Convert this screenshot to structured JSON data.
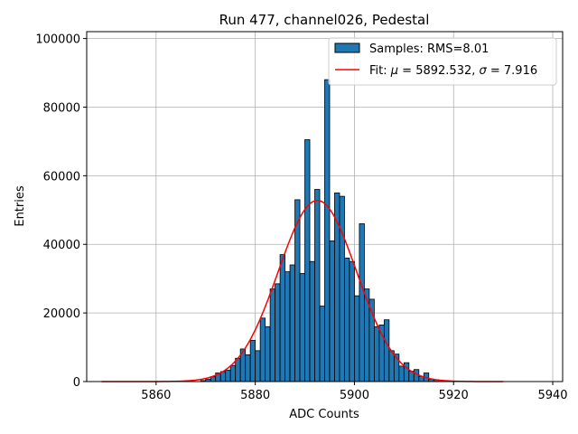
{
  "chart_data": {
    "type": "bar",
    "title": "Run 477, channel026, Pedestal",
    "xlabel": "ADC Counts",
    "ylabel": "Entries",
    "xlim": [
      5846,
      5942
    ],
    "ylim": [
      0,
      102000
    ],
    "xticks": [
      5860,
      5880,
      5900,
      5920,
      5940
    ],
    "yticks": [
      0,
      20000,
      40000,
      60000,
      80000,
      100000
    ],
    "grid": true,
    "legend_position": "top-right",
    "colors": {
      "bars": "#1f77b4",
      "bar_edge": "#000000",
      "fit": "#ff0000",
      "grid": "#b0b0b0"
    },
    "histogram": {
      "name": "Samples: RMS=8.01",
      "bin_width": 1,
      "bins": [
        [
          5869,
          300
        ],
        [
          5870,
          700
        ],
        [
          5871,
          1400
        ],
        [
          5872,
          2500
        ],
        [
          5873,
          2900
        ],
        [
          5874,
          3300
        ],
        [
          5875,
          4700
        ],
        [
          5876,
          6800
        ],
        [
          5877,
          9500
        ],
        [
          5878,
          7800
        ],
        [
          5879,
          12000
        ],
        [
          5880,
          9000
        ],
        [
          5881,
          18500
        ],
        [
          5882,
          16000
        ],
        [
          5883,
          27000
        ],
        [
          5884,
          28500
        ],
        [
          5885,
          37000
        ],
        [
          5886,
          32000
        ],
        [
          5887,
          34000
        ],
        [
          5888,
          53000
        ],
        [
          5889,
          31500
        ],
        [
          5890,
          70500
        ],
        [
          5891,
          35000
        ],
        [
          5892,
          56000
        ],
        [
          5893,
          22000
        ],
        [
          5894,
          88000
        ],
        [
          5895,
          41000
        ],
        [
          5896,
          55000
        ],
        [
          5897,
          54000
        ],
        [
          5898,
          36000
        ],
        [
          5899,
          35000
        ],
        [
          5900,
          25000
        ],
        [
          5901,
          46000
        ],
        [
          5902,
          27000
        ],
        [
          5903,
          24000
        ],
        [
          5904,
          16000
        ],
        [
          5905,
          16500
        ],
        [
          5906,
          18000
        ],
        [
          5907,
          9000
        ],
        [
          5908,
          8000
        ],
        [
          5909,
          4500
        ],
        [
          5910,
          5500
        ],
        [
          5911,
          3000
        ],
        [
          5912,
          3500
        ],
        [
          5913,
          1500
        ],
        [
          5914,
          2500
        ],
        [
          5915,
          700
        ],
        [
          5916,
          500
        ],
        [
          5917,
          200
        ]
      ]
    },
    "fit": {
      "name": "Fit: μ = 5892.532, σ = 7.916",
      "label_prefix": "Fit: ",
      "mu_symbol": "μ",
      "mu_text": " = 5892.532, ",
      "sigma_symbol": "σ",
      "sigma_text": " = 7.916",
      "mu": 5892.532,
      "sigma": 7.916,
      "amplitude": 52800,
      "x_range": [
        5849,
        5930
      ]
    }
  }
}
